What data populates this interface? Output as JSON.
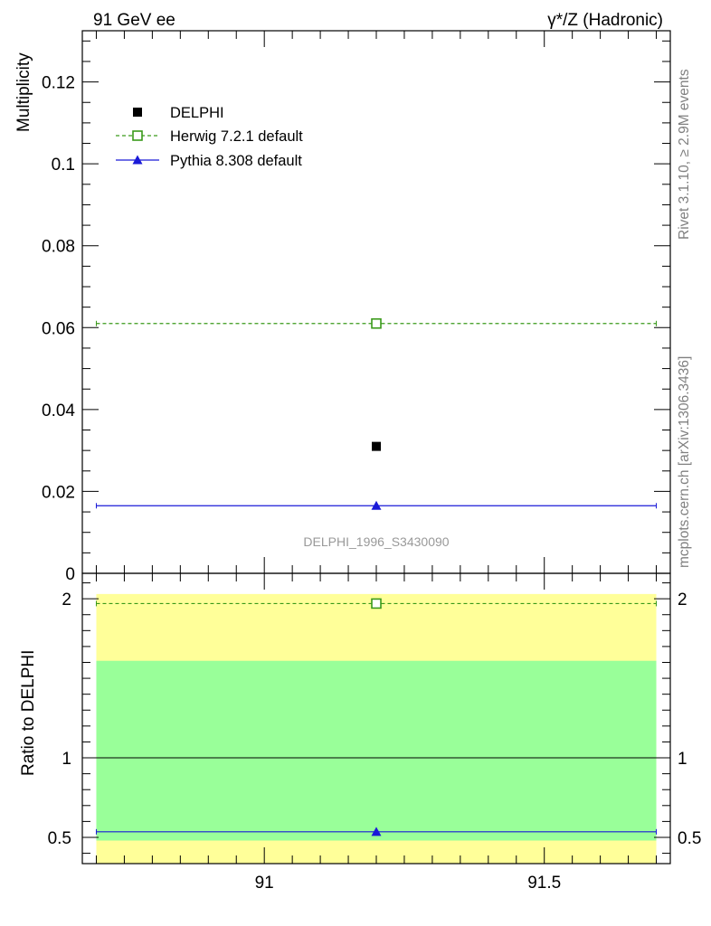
{
  "header": {
    "left": "91 GeV ee",
    "right": "γ*/Z (Hadronic)"
  },
  "side_labels": {
    "rivet": "Rivet 3.1.10, ≥ 2.9M events",
    "source": "mcplots.cern.ch [arXiv:1306.3436]"
  },
  "chart_data": [
    {
      "type": "scatter",
      "ylabel": "Multiplicity",
      "watermark": "DELPHI_1996_S3430090",
      "xlim": [
        90.675,
        91.725
      ],
      "ylim": [
        0,
        0.1325
      ],
      "y_ticks": [
        0,
        0.02,
        0.04,
        0.06,
        0.08,
        0.1,
        0.12
      ],
      "y_tick_labels": [
        "0",
        "0.02",
        "0.04",
        "0.06",
        "0.08",
        "0.1",
        "0.12"
      ],
      "legend_position": "top-left",
      "series": [
        {
          "name": "DELPHI",
          "x": [
            91.2
          ],
          "y": [
            0.031
          ],
          "xerr": [
            0
          ],
          "color": "#000000",
          "marker": "square-filled"
        },
        {
          "name": "Herwig 7.2.1 default",
          "x": [
            91.2
          ],
          "y": [
            0.061
          ],
          "xlow": 90.7,
          "xhigh": 91.7,
          "color": "#3a9a1a",
          "marker": "square-open",
          "linestyle": "dashed"
        },
        {
          "name": "Pythia 8.308 default",
          "x": [
            91.2
          ],
          "y": [
            0.0165
          ],
          "xlow": 90.7,
          "xhigh": 91.7,
          "color": "#1a1ad8",
          "marker": "triangle-filled",
          "linestyle": "solid"
        }
      ]
    },
    {
      "type": "scatter",
      "ylabel": "Ratio to DELPHI",
      "xlim": [
        90.675,
        91.725
      ],
      "ylim": [
        0.335,
        2.16
      ],
      "x_ticks": [
        91,
        91.5
      ],
      "x_tick_labels": [
        "91",
        "91.5"
      ],
      "y_ticks": [
        0.5,
        1,
        2
      ],
      "y_tick_labels": [
        "0.5",
        "1",
        "2"
      ],
      "bands": [
        {
          "name": "total uncertainty",
          "xlow": 90.7,
          "xhigh": 91.7,
          "ylow": 0.0,
          "yhigh": 2.03,
          "color": "#ffff99"
        },
        {
          "name": "statistical uncertainty",
          "xlow": 90.7,
          "xhigh": 91.7,
          "ylow": 0.48,
          "yhigh": 1.61,
          "color": "#99ff99"
        }
      ],
      "reference_line": 1,
      "series": [
        {
          "name": "Herwig 7.2.1 default",
          "x": [
            91.2
          ],
          "y": [
            1.97
          ],
          "xlow": 90.7,
          "xhigh": 91.7,
          "color": "#3a9a1a",
          "marker": "square-open",
          "linestyle": "dashed"
        },
        {
          "name": "Pythia 8.308 default",
          "x": [
            91.2
          ],
          "y": [
            0.535
          ],
          "xlow": 90.7,
          "xhigh": 91.7,
          "color": "#1a1ad8",
          "marker": "triangle-filled",
          "linestyle": "solid"
        }
      ]
    }
  ]
}
